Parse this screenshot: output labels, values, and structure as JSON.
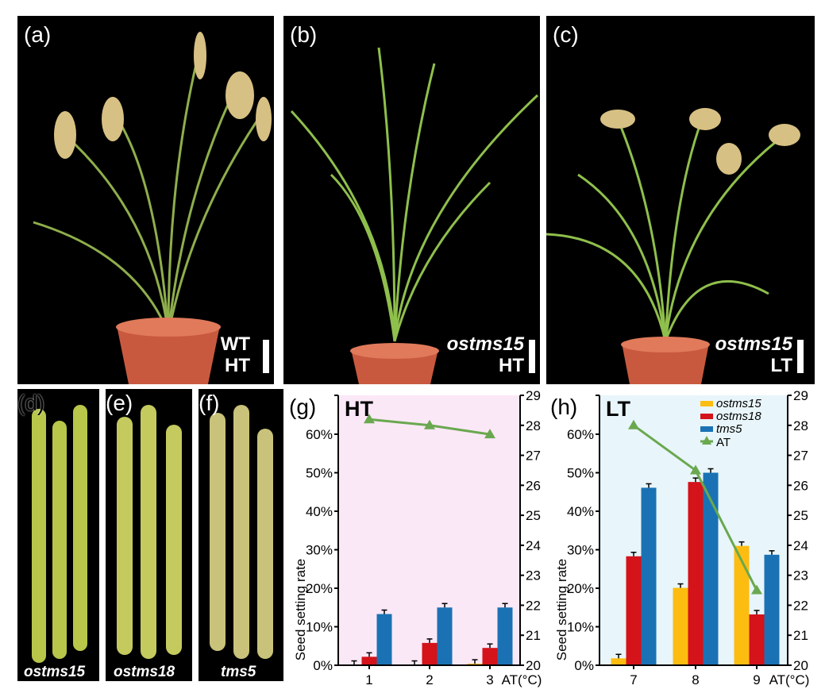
{
  "panels": {
    "a": {
      "label": "(a)",
      "genotype": "WT",
      "condition": "HT"
    },
    "b": {
      "label": "(b)",
      "genotype": "ostms15",
      "condition": "HT"
    },
    "c": {
      "label": "(c)",
      "genotype": "ostms15",
      "condition": "LT"
    },
    "d": {
      "label": "(d)",
      "genotype": "ostms15"
    },
    "e": {
      "label": "(e)",
      "genotype": "ostms18"
    },
    "f": {
      "label": "(f)",
      "genotype": "tms5"
    }
  },
  "colors": {
    "ostms15": "#fdbd10",
    "ostms18": "#d4131a",
    "tms5": "#1a72b4",
    "AT": "#6aa84f",
    "g_bg": "#fbe8f7",
    "h_bg": "#e8f5fa"
  },
  "chart_data": [
    {
      "panel_label": "(g)",
      "title": "HT",
      "type": "bar",
      "categories": [
        "1",
        "2",
        "3"
      ],
      "ylabel": "Seed setting rate",
      "xlabel": "AT(°C)",
      "ylim": [
        0,
        70
      ],
      "yticks": [
        "0%",
        "10%",
        "20%",
        "30%",
        "40%",
        "50%",
        "60%"
      ],
      "y2lim": [
        20,
        29
      ],
      "y2ticks": [
        "20",
        "21",
        "22",
        "23",
        "24",
        "25",
        "26",
        "27",
        "28",
        "29"
      ],
      "series": [
        {
          "name": "ostms15",
          "values": [
            0.1,
            0.1,
            0.4
          ]
        },
        {
          "name": "ostms18",
          "values": [
            2.2,
            5.8,
            4.5
          ]
        },
        {
          "name": "tms5",
          "values": [
            13.3,
            15.0,
            15.0
          ]
        }
      ],
      "line": {
        "name": "AT",
        "axis": "right",
        "values": [
          28.2,
          28.0,
          27.7
        ]
      },
      "legend": false
    },
    {
      "panel_label": "(h)",
      "title": "LT",
      "type": "bar",
      "categories": [
        "7",
        "8",
        "9"
      ],
      "ylabel": "Seed setting rate",
      "xlabel": "AT(°C)",
      "ylim": [
        0,
        70
      ],
      "yticks": [
        "0%",
        "10%",
        "20%",
        "30%",
        "40%",
        "50%",
        "60%"
      ],
      "y2lim": [
        20,
        29
      ],
      "y2ticks": [
        "20",
        "21",
        "22",
        "23",
        "24",
        "25",
        "26",
        "27",
        "28",
        "29"
      ],
      "series": [
        {
          "name": "ostms15",
          "values": [
            1.8,
            20.1,
            31.0
          ]
        },
        {
          "name": "ostms18",
          "values": [
            28.3,
            47.6,
            13.2
          ]
        },
        {
          "name": "tms5",
          "values": [
            46.1,
            50.0,
            28.7
          ]
        }
      ],
      "line": {
        "name": "AT",
        "axis": "right",
        "values": [
          28.0,
          26.5,
          22.5
        ]
      },
      "legend": "top-right"
    }
  ]
}
